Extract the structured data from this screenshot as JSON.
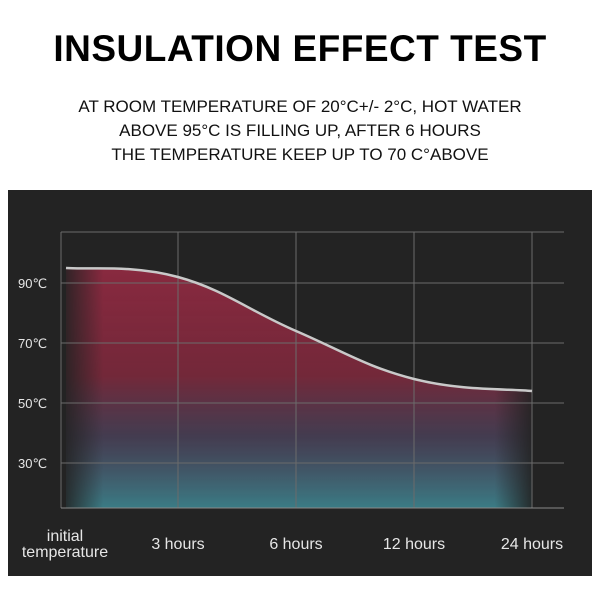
{
  "header": {
    "title": "INSULATION EFFECT TEST",
    "subtitle_lines": [
      "AT ROOM TEMPERATURE OF 20°C+/- 2°C, HOT WATER",
      "ABOVE 95°C IS FILLING UP, AFTER 6 HOURS",
      "THE TEMPERATURE KEEP UP TO 70 C°ABOVE"
    ]
  },
  "colors": {
    "panel_background": "#232323",
    "grid": "#6b6b6b",
    "curve": "#c9c9c9",
    "fill_top": "#8e2a41",
    "fill_bottom": "#3f8c97",
    "label_text": "#e6e6e6"
  },
  "chart_data": {
    "type": "area",
    "title": "",
    "xlabel": "",
    "ylabel": "",
    "categories": [
      "initial temperature",
      "3 hours",
      "6 hours",
      "12 hours",
      "24 hours"
    ],
    "category_label_lines": [
      [
        "initial",
        "temperature"
      ],
      [
        "3 hours"
      ],
      [
        "6 hours"
      ],
      [
        "12 hours"
      ],
      [
        "24 hours"
      ]
    ],
    "y_ticks": [
      30,
      50,
      70,
      90
    ],
    "y_tick_labels": [
      "30℃",
      "50℃",
      "70℃",
      "90℃"
    ],
    "ylim": [
      15,
      107
    ],
    "series": [
      {
        "values": [
          95,
          92,
          74,
          58,
          54
        ]
      }
    ],
    "grid": true,
    "legend": "none"
  }
}
